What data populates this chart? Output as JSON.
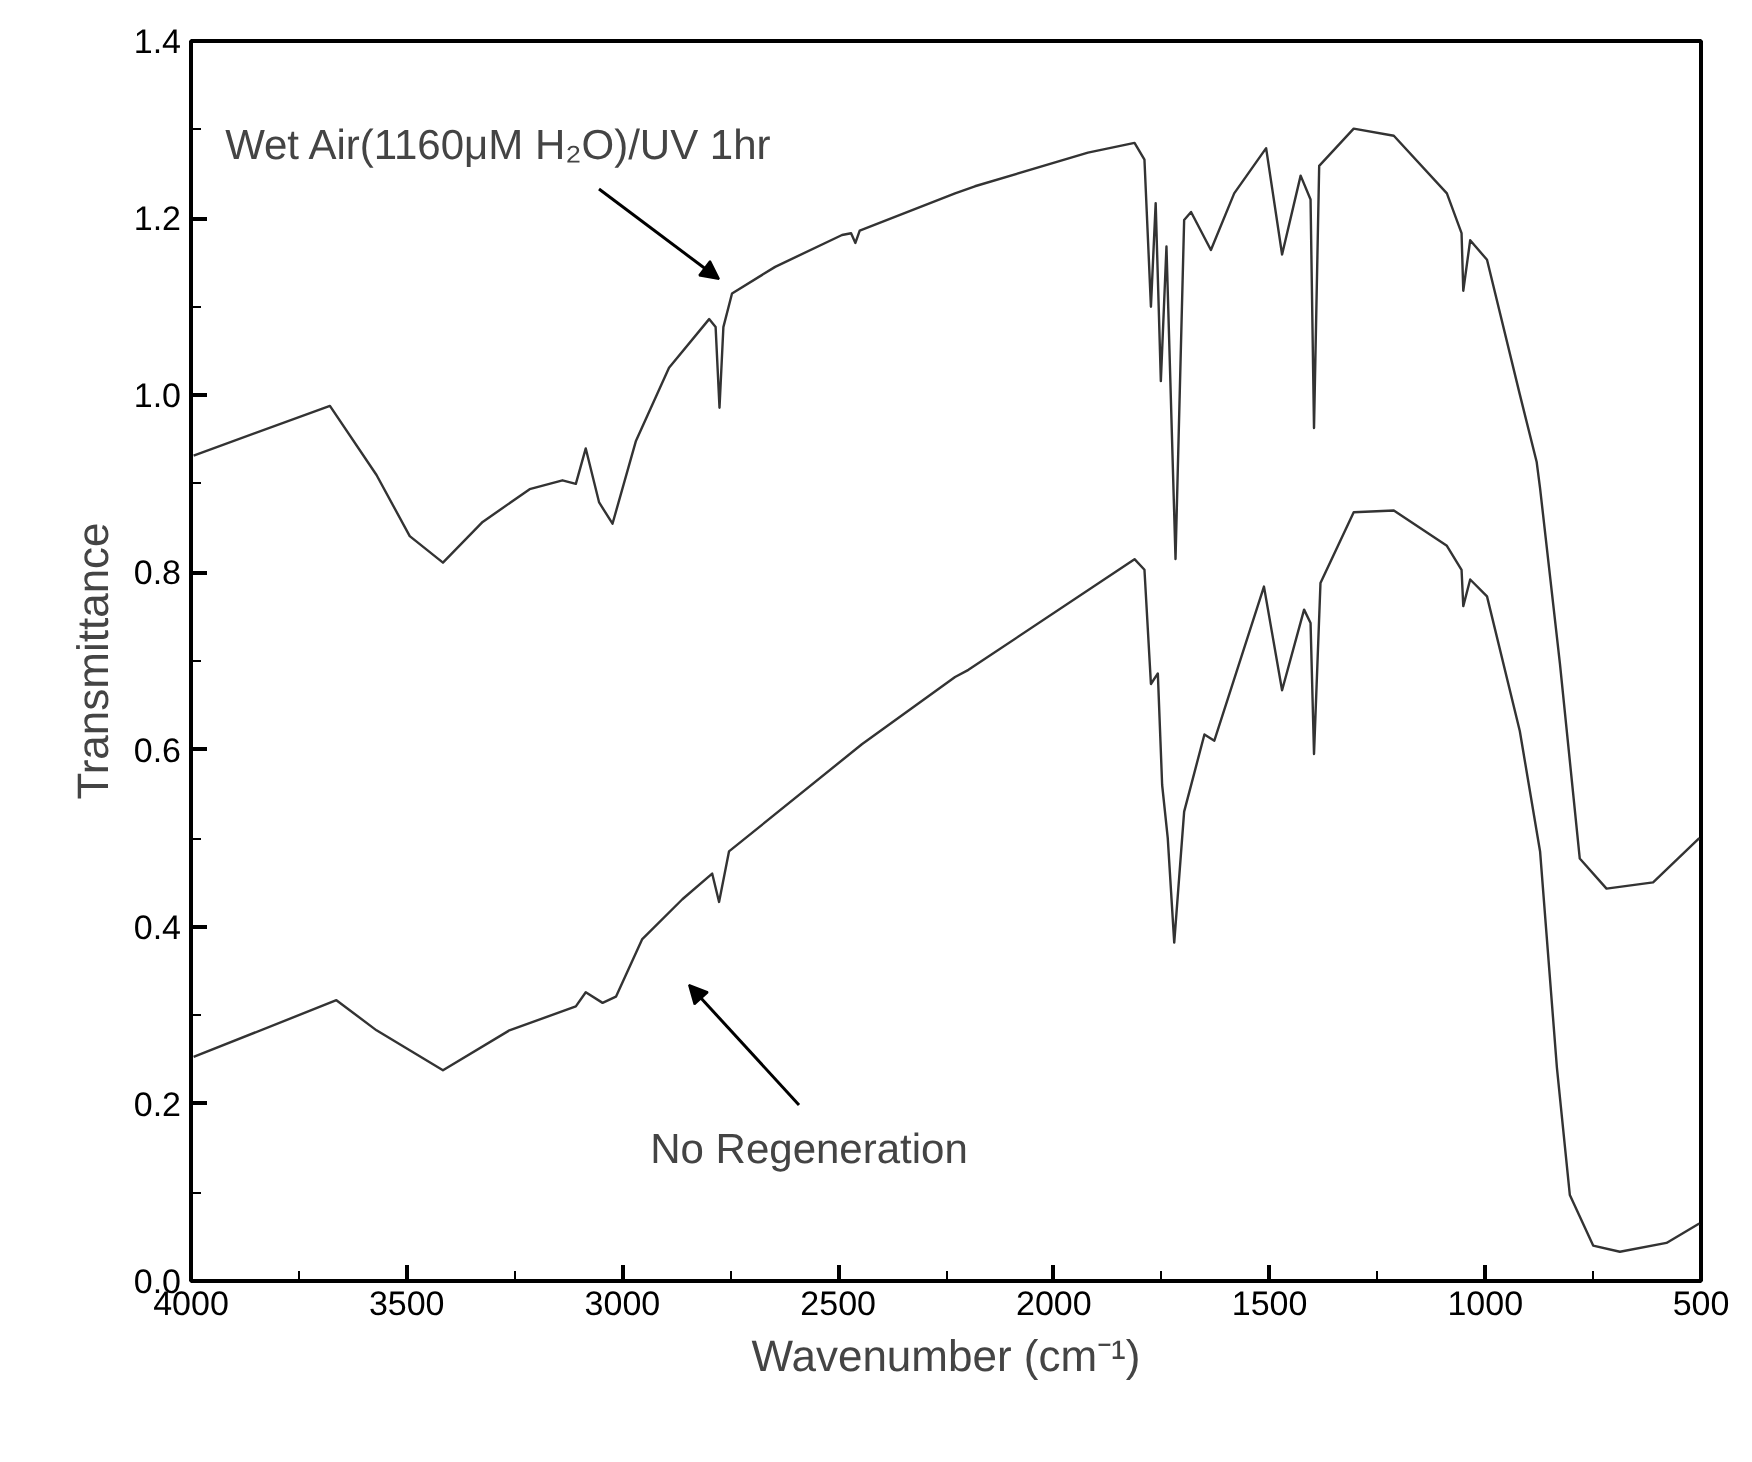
{
  "chart_data": {
    "type": "line",
    "xlabel": "Wavenumber (cm⁻¹)",
    "ylabel": "Transmittance",
    "xlim": [
      4000,
      500
    ],
    "ylim": [
      0,
      1.4
    ],
    "xticks": [
      4000,
      {
        "value": 3750,
        "label": null
      },
      3500,
      {
        "value": 3250,
        "label": null
      },
      3000,
      {
        "value": 2750,
        "label": null
      },
      2500,
      {
        "value": 2250,
        "label": null
      },
      2000,
      {
        "value": 1750,
        "label": null
      },
      1500,
      {
        "value": 1250,
        "label": null
      },
      1000,
      {
        "value": 750,
        "label": null
      },
      500
    ],
    "yticks": [
      {
        "value": 0,
        "label": "0.0"
      },
      {
        "value": 0.1,
        "label": null
      },
      {
        "value": 0.2,
        "label": "0.2"
      },
      {
        "value": 0.3,
        "label": null
      },
      {
        "value": 0.4,
        "label": "0.4"
      },
      {
        "value": 0.5,
        "label": null
      },
      {
        "value": 0.6,
        "label": "0.6"
      },
      {
        "value": 0.7,
        "label": null
      },
      {
        "value": 0.8,
        "label": "0.8"
      },
      {
        "value": 0.9,
        "label": null
      },
      {
        "value": 1.0,
        "label": "1.0"
      },
      {
        "value": 1.1,
        "label": null
      },
      {
        "value": 1.2,
        "label": "1.2"
      },
      {
        "value": 1.3,
        "label": null
      },
      {
        "value": 1.4,
        "label": "1.4"
      }
    ],
    "grid": false,
    "marker": "none",
    "line_style": "solid",
    "annotations": [
      "Wet Air(1160μM H₂O)/UV 1hr",
      "No Regeneration"
    ],
    "series": [
      {
        "color": "#333333",
        "x": [
          3994,
          3678,
          3570,
          3493,
          3416,
          3324,
          3215,
          3139,
          3108,
          3085,
          3054,
          3023,
          2969,
          2892,
          2799,
          2784,
          2775,
          2766,
          2746,
          2646,
          2491,
          2470,
          2460,
          2450,
          2229,
          2183,
          1921,
          1813,
          1790,
          1775,
          1764,
          1752,
          1739,
          1718,
          1698,
          1682,
          1636,
          1582,
          1508,
          1471,
          1428,
          1405,
          1397,
          1385,
          1305,
          1212,
          1089,
          1055,
          1051,
          1035,
          996,
          920,
          881,
          873,
          827,
          781,
          719,
          611,
          504
        ],
        "values": [
          0.932,
          0.988,
          0.91,
          0.841,
          0.811,
          0.857,
          0.894,
          0.904,
          0.9,
          0.94,
          0.879,
          0.855,
          0.948,
          1.031,
          1.086,
          1.077,
          0.986,
          1.077,
          1.115,
          1.145,
          1.181,
          1.183,
          1.172,
          1.186,
          1.228,
          1.236,
          1.274,
          1.285,
          1.266,
          1.1,
          1.217,
          1.016,
          1.168,
          0.815,
          1.198,
          1.207,
          1.164,
          1.228,
          1.279,
          1.159,
          1.248,
          1.221,
          0.963,
          1.259,
          1.301,
          1.293,
          1.228,
          1.183,
          1.118,
          1.175,
          1.153,
          1.001,
          0.925,
          0.895,
          0.697,
          0.477,
          0.443,
          0.45,
          0.5
        ]
      },
      {
        "color": "#333333",
        "x": [
          3994,
          3663,
          3570,
          3416,
          3262,
          3108,
          3085,
          3046,
          3015,
          2954,
          2861,
          2792,
          2776,
          2753,
          2445,
          2229,
          2198,
          1813,
          1790,
          1775,
          1759,
          1749,
          1736,
          1721,
          1698,
          1651,
          1628,
          1513,
          1471,
          1420,
          1405,
          1397,
          1382,
          1305,
          1212,
          1089,
          1055,
          1051,
          1035,
          996,
          920,
          873,
          834,
          804,
          750,
          688,
          580,
          504
        ],
        "values": [
          0.253,
          0.317,
          0.283,
          0.238,
          0.283,
          0.31,
          0.326,
          0.314,
          0.321,
          0.386,
          0.431,
          0.46,
          0.428,
          0.485,
          0.606,
          0.682,
          0.69,
          0.815,
          0.803,
          0.674,
          0.686,
          0.56,
          0.5,
          0.382,
          0.53,
          0.617,
          0.61,
          0.784,
          0.667,
          0.758,
          0.743,
          0.595,
          0.788,
          0.868,
          0.87,
          0.83,
          0.803,
          0.762,
          0.792,
          0.773,
          0.621,
          0.485,
          0.241,
          0.097,
          0.04,
          0.033,
          0.043,
          0.065
        ]
      }
    ]
  }
}
